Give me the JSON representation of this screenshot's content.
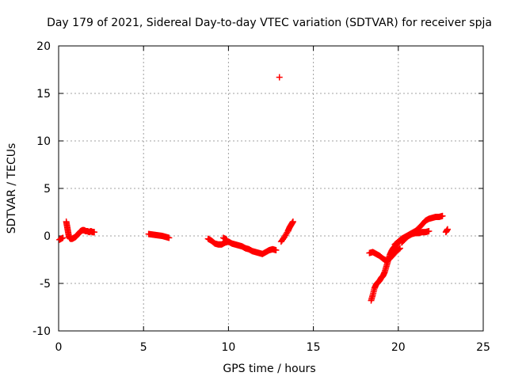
{
  "chart_data": {
    "type": "scatter",
    "title": "Day 179 of 2021, Sidereal Day-to-day VTEC variation (SDTVAR) for receiver spja",
    "xlabel": "GPS time / hours",
    "ylabel": "SDTVAR / TECUs",
    "xlim": [
      0,
      25
    ],
    "ylim": [
      -10,
      20
    ],
    "xticks": [
      0,
      5,
      10,
      15,
      20,
      25
    ],
    "yticks": [
      -10,
      -5,
      0,
      5,
      10,
      15,
      20
    ],
    "grid": true,
    "marker": "plus",
    "color": "#ff0000",
    "segments": [
      {
        "x": [
          0.05,
          0.25
        ],
        "y": [
          -0.4,
          -0.2
        ]
      },
      {
        "x": [
          0.45,
          0.5,
          0.55,
          0.6,
          0.65,
          0.7,
          0.8,
          0.9,
          1.0,
          1.1,
          1.2,
          1.3,
          1.4,
          1.5,
          1.6,
          1.7,
          1.8,
          1.9,
          2.0,
          2.1
        ],
        "y": [
          1.5,
          1.0,
          0.5,
          0.0,
          -0.2,
          -0.3,
          -0.3,
          -0.2,
          -0.1,
          0.1,
          0.3,
          0.5,
          0.6,
          0.6,
          0.5,
          0.5,
          0.4,
          0.5,
          0.4,
          0.4
        ]
      },
      {
        "x": [
          5.3,
          5.5,
          5.7,
          5.9,
          6.1,
          6.3,
          6.5
        ],
        "y": [
          0.2,
          0.15,
          0.1,
          0.05,
          0.0,
          -0.1,
          -0.2
        ]
      },
      {
        "x": [
          8.8,
          9.0,
          9.2,
          9.4,
          9.6,
          9.8,
          10.0,
          10.2,
          10.4,
          10.6,
          10.8,
          11.0,
          11.2,
          11.4,
          11.6,
          11.8,
          12.0,
          12.2,
          12.4,
          12.6,
          12.8
        ],
        "y": [
          -0.3,
          -0.5,
          -0.8,
          -0.9,
          -0.9,
          -0.7,
          -0.6,
          -0.8,
          -0.9,
          -1.0,
          -1.1,
          -1.3,
          -1.4,
          -1.6,
          -1.7,
          -1.8,
          -1.9,
          -1.7,
          -1.5,
          -1.4,
          -1.5
        ]
      },
      {
        "x": [
          9.7,
          9.9
        ],
        "y": [
          -0.2,
          -0.4
        ]
      },
      {
        "x": [
          13.0
        ],
        "y": [
          16.7
        ]
      },
      {
        "x": [
          13.1,
          13.3,
          13.5,
          13.6,
          13.7,
          13.8
        ],
        "y": [
          -0.6,
          -0.1,
          0.5,
          0.9,
          1.2,
          1.5
        ]
      },
      {
        "x": [
          18.4,
          18.5,
          18.6,
          18.7,
          18.8,
          18.9,
          19.0,
          19.1,
          19.2,
          19.3,
          19.4,
          19.5,
          19.6,
          19.7,
          19.8,
          19.9,
          20.0,
          20.1
        ],
        "y": [
          -6.8,
          -6.2,
          -5.5,
          -5.1,
          -4.9,
          -4.7,
          -4.4,
          -4.2,
          -3.8,
          -3.2,
          -2.6,
          -2.0,
          -1.6,
          -1.3,
          -1.1,
          -0.9,
          -0.7,
          -0.5
        ]
      },
      {
        "x": [
          18.3,
          18.5,
          18.7,
          18.9,
          19.1,
          19.3,
          19.5,
          19.7,
          19.9,
          20.1
        ],
        "y": [
          -1.8,
          -1.7,
          -1.9,
          -2.1,
          -2.4,
          -2.6,
          -2.4,
          -2.0,
          -1.6,
          -1.3
        ]
      },
      {
        "x": [
          20.2,
          20.4,
          20.6,
          20.8,
          21.0,
          21.2,
          21.4,
          21.6,
          21.8
        ],
        "y": [
          -0.7,
          -0.3,
          0.0,
          0.2,
          0.3,
          0.3,
          0.4,
          0.4,
          0.5
        ]
      },
      {
        "x": [
          19.8,
          20.0,
          20.2,
          20.4,
          20.6,
          20.8,
          21.0,
          21.2,
          21.4,
          21.6,
          21.8,
          22.0,
          22.2,
          22.4,
          22.6
        ],
        "y": [
          -0.9,
          -0.6,
          -0.3,
          -0.1,
          0.1,
          0.3,
          0.5,
          0.8,
          1.2,
          1.6,
          1.8,
          1.9,
          2.0,
          2.0,
          2.1
        ]
      },
      {
        "x": [
          22.8,
          22.9
        ],
        "y": [
          0.4,
          0.7
        ]
      }
    ]
  }
}
